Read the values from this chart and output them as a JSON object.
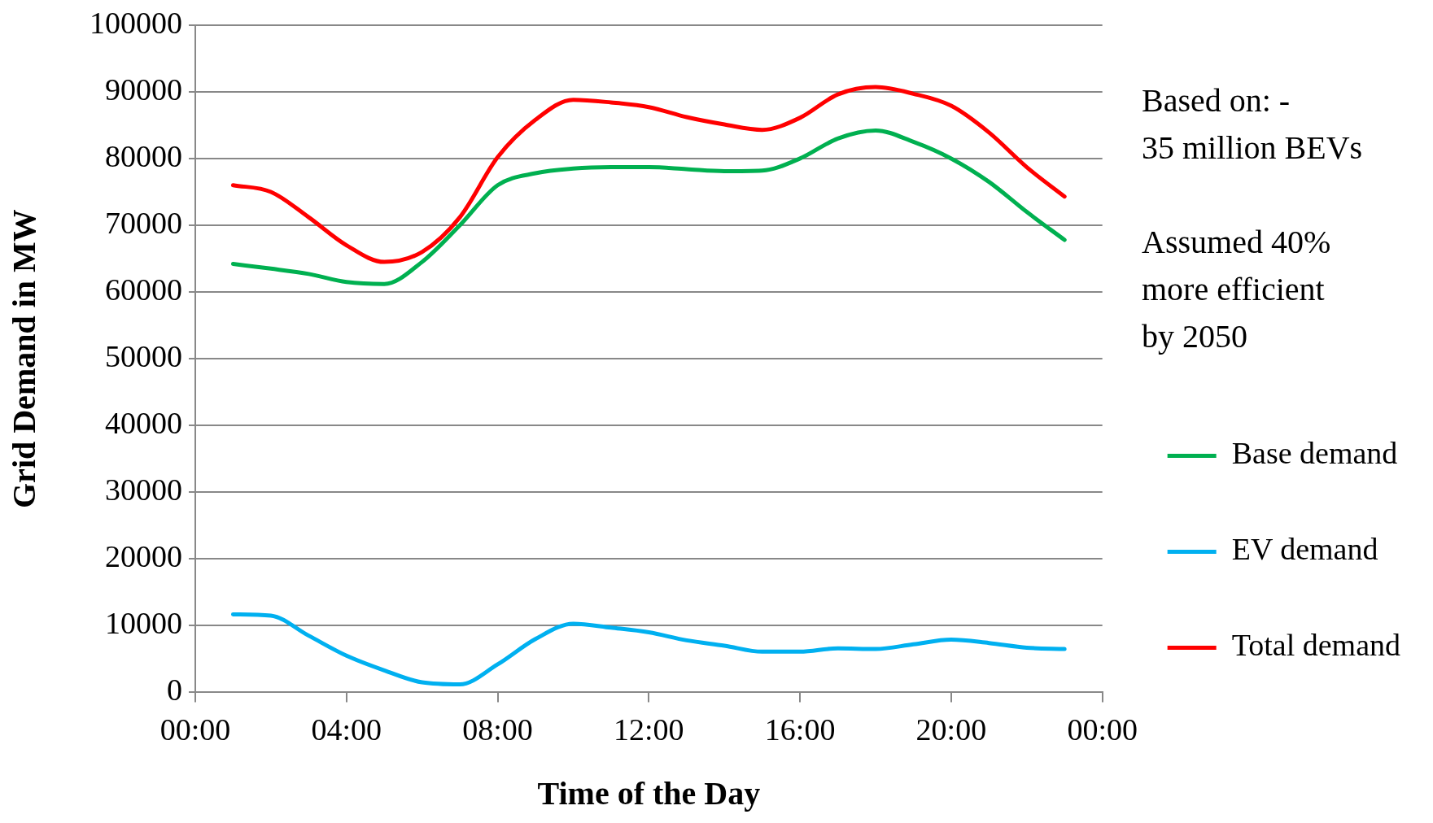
{
  "chart_data": {
    "type": "line",
    "xlabel": "Time of the Day",
    "ylabel": "Grid Demand in MW",
    "x": [
      1,
      2,
      3,
      4,
      5,
      6,
      7,
      8,
      9,
      10,
      11,
      12,
      13,
      14,
      15,
      16,
      17,
      18,
      19,
      20,
      21,
      22,
      23
    ],
    "xlim": [
      0,
      24
    ],
    "xticks": [
      {
        "value": 0,
        "label": "00:00"
      },
      {
        "value": 4,
        "label": "04:00"
      },
      {
        "value": 8,
        "label": "08:00"
      },
      {
        "value": 12,
        "label": "12:00"
      },
      {
        "value": 16,
        "label": "16:00"
      },
      {
        "value": 20,
        "label": "20:00"
      },
      {
        "value": 24,
        "label": "00:00"
      }
    ],
    "ylim": [
      0,
      100000
    ],
    "yticks": [
      0,
      10000,
      20000,
      30000,
      40000,
      50000,
      60000,
      70000,
      80000,
      90000,
      100000
    ],
    "grid": "y",
    "legend": "right",
    "marker": "none",
    "line_style": "solid",
    "annotations": [
      "Based on: -\n35 million BEVs",
      "Assumed 40%\nmore efficient\nby 2050"
    ],
    "series": [
      {
        "name": "Base demand",
        "color": "#00b050",
        "values": [
          64200,
          63500,
          62700,
          61500,
          61200,
          64500,
          70000,
          76000,
          77800,
          78500,
          78700,
          78700,
          78400,
          78100,
          78200,
          80000,
          83000,
          84200,
          82500,
          80000,
          76500,
          72000,
          67800
        ]
      },
      {
        "name": "EV demand",
        "color": "#00b0f0",
        "values": [
          11700,
          11500,
          8500,
          5500,
          3300,
          1500,
          1200,
          4200,
          8000,
          10300,
          9700,
          9000,
          7800,
          7000,
          6100,
          6100,
          6600,
          6500,
          7200,
          7900,
          7400,
          6700,
          6500
        ]
      },
      {
        "name": "Total demand",
        "color": "#ff0000",
        "values": [
          76000,
          75000,
          71200,
          67000,
          64500,
          66000,
          71200,
          80200,
          85800,
          88800,
          88400,
          87700,
          86200,
          85100,
          84300,
          86100,
          89600,
          90700,
          89700,
          87900,
          83900,
          78700,
          74300
        ]
      }
    ]
  }
}
